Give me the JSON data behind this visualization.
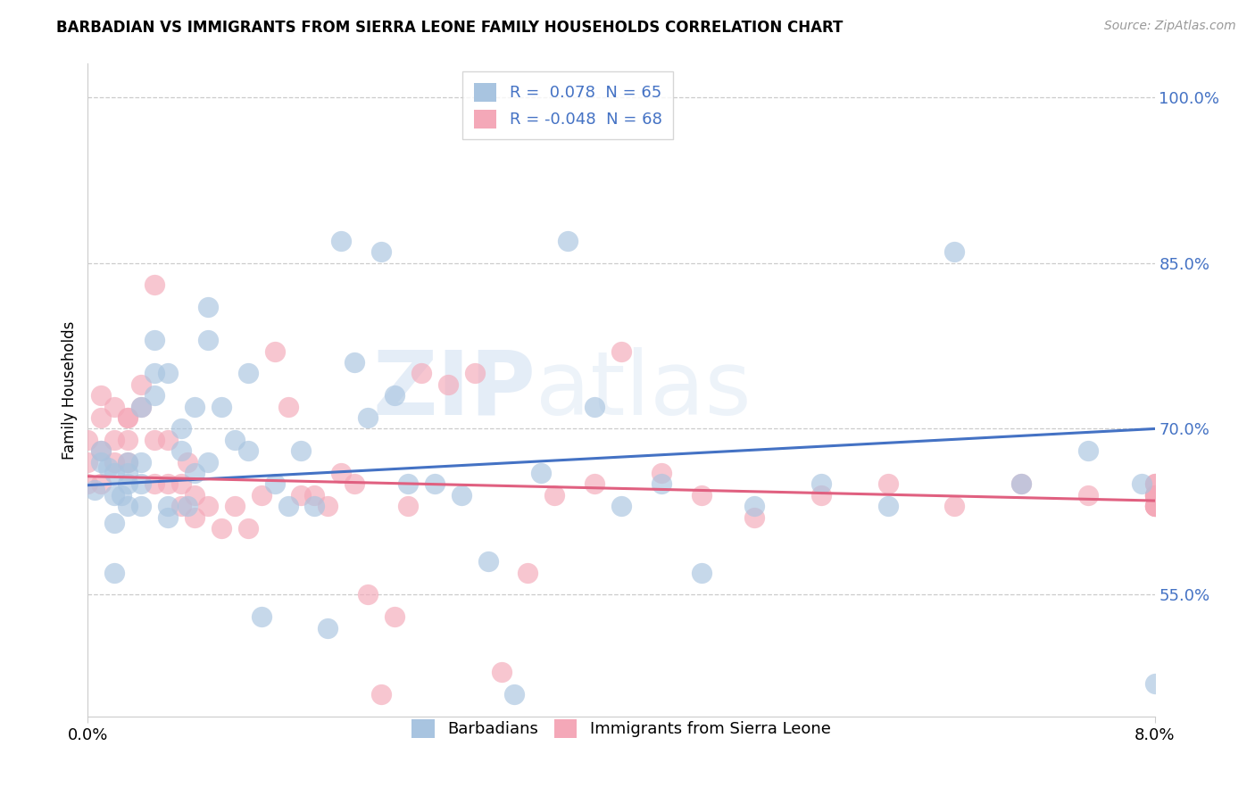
{
  "title": "BARBADIAN VS IMMIGRANTS FROM SIERRA LEONE FAMILY HOUSEHOLDS CORRELATION CHART",
  "source": "Source: ZipAtlas.com",
  "ylabel": "Family Households",
  "ytick_labels": [
    "55.0%",
    "70.0%",
    "85.0%",
    "100.0%"
  ],
  "ytick_values": [
    0.55,
    0.7,
    0.85,
    1.0
  ],
  "xlim": [
    0.0,
    0.08
  ],
  "ylim": [
    0.44,
    1.03
  ],
  "legend_blue_r": "0.078",
  "legend_blue_n": "65",
  "legend_pink_r": "-0.048",
  "legend_pink_n": "68",
  "blue_color": "#a8c4e0",
  "pink_color": "#f4a8b8",
  "blue_line_color": "#4472c4",
  "pink_line_color": "#e06080",
  "watermark_zip": "ZIP",
  "watermark_atlas": "atlas",
  "blue_points_x": [
    0.0005,
    0.001,
    0.001,
    0.0015,
    0.002,
    0.002,
    0.002,
    0.002,
    0.0025,
    0.003,
    0.003,
    0.003,
    0.003,
    0.004,
    0.004,
    0.004,
    0.004,
    0.005,
    0.005,
    0.005,
    0.006,
    0.006,
    0.006,
    0.007,
    0.007,
    0.0075,
    0.008,
    0.008,
    0.009,
    0.009,
    0.009,
    0.01,
    0.011,
    0.012,
    0.012,
    0.013,
    0.014,
    0.015,
    0.016,
    0.017,
    0.018,
    0.019,
    0.02,
    0.021,
    0.022,
    0.023,
    0.024,
    0.026,
    0.028,
    0.03,
    0.032,
    0.034,
    0.036,
    0.038,
    0.04,
    0.043,
    0.046,
    0.05,
    0.055,
    0.06,
    0.065,
    0.07,
    0.075,
    0.079,
    0.08
  ],
  "blue_points_y": [
    0.645,
    0.67,
    0.68,
    0.665,
    0.64,
    0.66,
    0.57,
    0.615,
    0.64,
    0.63,
    0.65,
    0.66,
    0.67,
    0.72,
    0.63,
    0.65,
    0.67,
    0.73,
    0.75,
    0.78,
    0.75,
    0.63,
    0.62,
    0.68,
    0.7,
    0.63,
    0.66,
    0.72,
    0.67,
    0.81,
    0.78,
    0.72,
    0.69,
    0.68,
    0.75,
    0.53,
    0.65,
    0.63,
    0.68,
    0.63,
    0.52,
    0.87,
    0.76,
    0.71,
    0.86,
    0.73,
    0.65,
    0.65,
    0.64,
    0.58,
    0.46,
    0.66,
    0.87,
    0.72,
    0.63,
    0.65,
    0.57,
    0.63,
    0.65,
    0.63,
    0.86,
    0.65,
    0.68,
    0.65,
    0.47
  ],
  "pink_points_x": [
    0.0,
    0.0,
    0.0,
    0.001,
    0.001,
    0.001,
    0.001,
    0.002,
    0.002,
    0.002,
    0.003,
    0.003,
    0.003,
    0.003,
    0.004,
    0.004,
    0.005,
    0.005,
    0.005,
    0.006,
    0.006,
    0.007,
    0.007,
    0.0075,
    0.008,
    0.008,
    0.009,
    0.01,
    0.011,
    0.012,
    0.013,
    0.014,
    0.015,
    0.016,
    0.017,
    0.018,
    0.019,
    0.02,
    0.021,
    0.022,
    0.023,
    0.024,
    0.025,
    0.027,
    0.029,
    0.031,
    0.033,
    0.035,
    0.038,
    0.04,
    0.043,
    0.046,
    0.05,
    0.055,
    0.06,
    0.065,
    0.07,
    0.075,
    0.08,
    0.08,
    0.08,
    0.08,
    0.08,
    0.08,
    0.08,
    0.08,
    0.08,
    0.08
  ],
  "pink_points_y": [
    0.65,
    0.67,
    0.69,
    0.65,
    0.68,
    0.71,
    0.73,
    0.67,
    0.69,
    0.72,
    0.67,
    0.71,
    0.69,
    0.71,
    0.72,
    0.74,
    0.65,
    0.69,
    0.83,
    0.65,
    0.69,
    0.63,
    0.65,
    0.67,
    0.64,
    0.62,
    0.63,
    0.61,
    0.63,
    0.61,
    0.64,
    0.77,
    0.72,
    0.64,
    0.64,
    0.63,
    0.66,
    0.65,
    0.55,
    0.46,
    0.53,
    0.63,
    0.75,
    0.74,
    0.75,
    0.48,
    0.57,
    0.64,
    0.65,
    0.77,
    0.66,
    0.64,
    0.62,
    0.64,
    0.65,
    0.63,
    0.65,
    0.64,
    0.63,
    0.64,
    0.65,
    0.63,
    0.64,
    0.63,
    0.64,
    0.65,
    0.63,
    0.64
  ],
  "blue_line_x": [
    0.0,
    0.08
  ],
  "blue_line_y": [
    0.649,
    0.7
  ],
  "pink_line_x": [
    0.0,
    0.08
  ],
  "pink_line_y": [
    0.657,
    0.635
  ]
}
